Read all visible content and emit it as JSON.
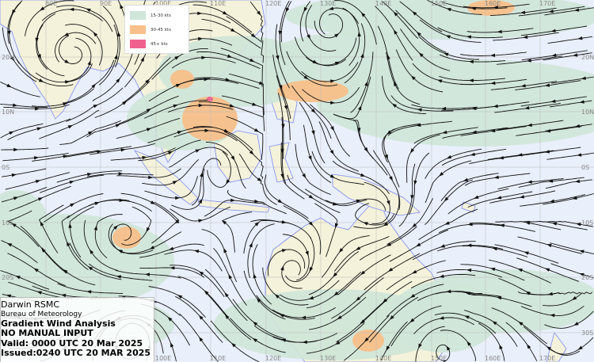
{
  "info": {
    "centre": "Darwin RSMC",
    "agency": "Bureau of Meteorology",
    "title": "Gradient Wind Analysis",
    "note": "NO MANUAL INPUT",
    "valid": "Valid:   0000 UTC 20 Mar 2025",
    "issued": "Issued:0240 UTC 20 MAR 2025"
  },
  "legend": [
    {
      "label": "15-30 kts",
      "color": "#cfe6d8"
    },
    {
      "label": "30-45 kts",
      "color": "#f7c08a"
    },
    {
      "label": "45+ kts",
      "color": "#f0608f"
    }
  ],
  "colors": {
    "ocean": "#e9effb",
    "land": "#f4f2da",
    "coast": "#7f8cf5",
    "streamline": "#111111",
    "grid": "#bbbbbb"
  },
  "axes": {
    "top_lon": [
      "80E",
      "90E",
      "100E",
      "110E",
      "120E",
      "130E",
      "140E",
      "150E",
      "160E",
      "170E"
    ],
    "bottom_lon": [
      "100E",
      "110E",
      "120E",
      "130E",
      "140E",
      "150E",
      "160E",
      "170E"
    ],
    "left_lat": [
      "20N",
      "10N",
      "0S",
      "10S",
      "20S"
    ],
    "right_lat": [
      "20N",
      "10N",
      "0S",
      "10S",
      "20S",
      "30S"
    ]
  }
}
